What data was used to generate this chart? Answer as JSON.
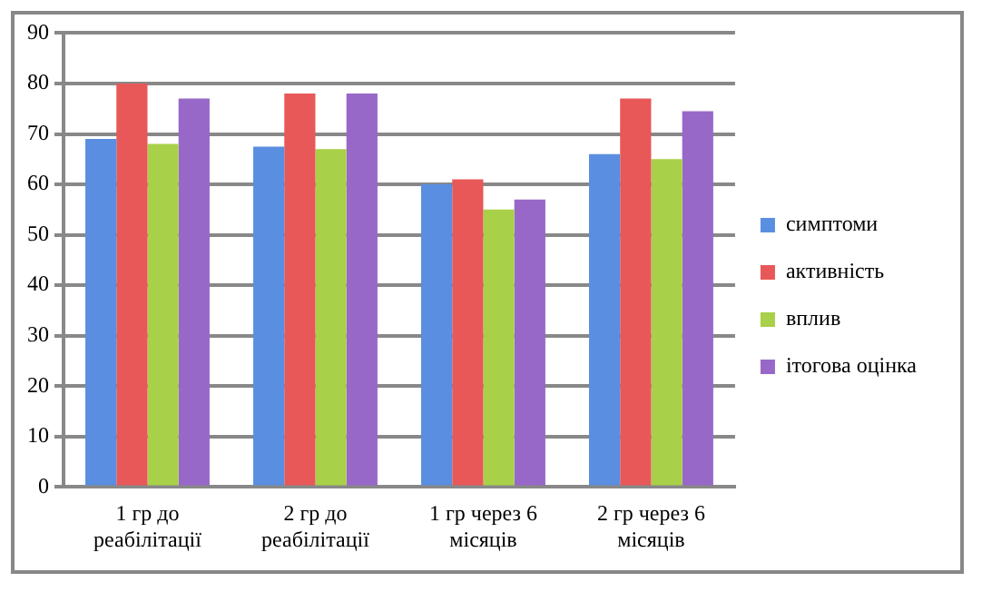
{
  "chart_data": {
    "type": "bar",
    "categories": [
      "1 гр до реабілітації",
      "2 гр до реабілітації",
      "1 гр через 6 місяців",
      "2 гр через 6 місяців"
    ],
    "series": [
      {
        "name": "симптоми",
        "color": "#5a8ee0",
        "values": [
          69,
          67.5,
          60,
          66
        ]
      },
      {
        "name": "активність",
        "color": "#e85858",
        "values": [
          80,
          78,
          61,
          77
        ]
      },
      {
        "name": "вплив",
        "color": "#a8d048",
        "values": [
          68,
          67,
          55,
          65
        ]
      },
      {
        "name": "ітогова оцінка",
        "color": "#9868c8",
        "values": [
          77,
          78,
          57,
          74.5
        ]
      }
    ],
    "ylim": [
      0,
      90
    ],
    "yticks": [
      0,
      10,
      20,
      30,
      40,
      50,
      60,
      70,
      80,
      90
    ],
    "grid": "y",
    "legend": "right"
  }
}
